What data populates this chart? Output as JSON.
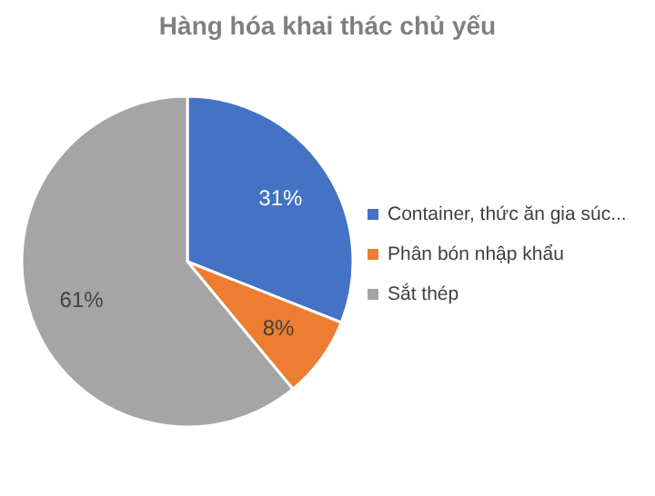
{
  "chart_data": {
    "type": "pie",
    "title": "Hàng hóa khai thác chủ yếu",
    "categories": [
      "Container, thức ăn gia súc...",
      "Phân bón nhập khẩu",
      "Sắt thép"
    ],
    "values": [
      31,
      8,
      61
    ],
    "colors": [
      "#4472c4",
      "#ed7d31",
      "#a5a5a5"
    ],
    "value_labels": [
      "31%",
      "8%",
      "61%"
    ],
    "legend": "right"
  }
}
